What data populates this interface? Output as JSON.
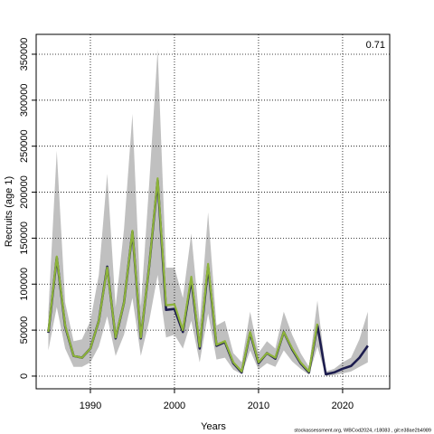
{
  "chart_data": {
    "type": "line",
    "xlabel": "Years",
    "ylabel": "Recruits (age 1)",
    "annotation": "0.71",
    "footer": "stockassessment.org, WBCod2024, r18083 , git:e38ae2b4989",
    "x": [
      1985,
      1986,
      1987,
      1988,
      1989,
      1990,
      1991,
      1992,
      1993,
      1994,
      1995,
      1996,
      1997,
      1998,
      1999,
      2000,
      2001,
      2002,
      2003,
      2004,
      2005,
      2006,
      2007,
      2008,
      2009,
      2010,
      2011,
      2012,
      2013,
      2014,
      2015,
      2016,
      2017,
      2018,
      2019,
      2020,
      2021,
      2022,
      2023
    ],
    "band": {
      "color": "#c0c0c0",
      "upper": [
        70000,
        245000,
        80000,
        38000,
        40000,
        60000,
        110000,
        220000,
        75000,
        160000,
        285000,
        75000,
        210000,
        355000,
        118000,
        118000,
        85000,
        155000,
        58000,
        178000,
        55000,
        60000,
        25000,
        15000,
        70000,
        25000,
        38000,
        30000,
        70000,
        45000,
        25000,
        10000,
        82000,
        5000,
        8000,
        15000,
        20000,
        40000,
        70000
      ],
      "lower": [
        28000,
        75000,
        30000,
        10000,
        10000,
        15000,
        32000,
        65000,
        22000,
        45000,
        85000,
        22000,
        60000,
        110000,
        42000,
        45000,
        30000,
        60000,
        15000,
        68000,
        18000,
        20000,
        7000,
        2000,
        28000,
        7000,
        14000,
        10000,
        28000,
        16000,
        8000,
        1500,
        32000,
        500,
        1000,
        3000,
        5000,
        10000,
        15000
      ]
    },
    "series": [
      {
        "color": "#1c1c4e",
        "values": [
          47000,
          129000,
          54000,
          22000,
          20000,
          30000,
          60000,
          119000,
          41000,
          80000,
          157000,
          41000,
          120000,
          213000,
          72000,
          73000,
          48000,
          105000,
          30000,
          119000,
          33000,
          37000,
          14000,
          4000,
          47000,
          14000,
          25000,
          19000,
          48000,
          29000,
          14000,
          4000,
          55000,
          2000,
          4000,
          8000,
          11000,
          20000,
          33000
        ]
      },
      {
        "color": "#8db33a",
        "values": [
          48000,
          130000,
          55000,
          22000,
          20000,
          30000,
          60000,
          118000,
          42000,
          80000,
          158000,
          42000,
          120000,
          215000,
          77000,
          78000,
          50000,
          108000,
          32000,
          122000,
          34000,
          38000,
          15000,
          5000,
          48000,
          15000,
          25000,
          20000,
          48000,
          30000,
          15000,
          5000,
          57000,
          null,
          null,
          null,
          null,
          null,
          null
        ]
      }
    ],
    "xlim": [
      1983.55,
      2025.6
    ],
    "ylim": [
      -13800,
      371600
    ],
    "xticks": [
      1990,
      2000,
      2010,
      2020
    ],
    "yticks": [
      0,
      50000,
      100000,
      150000,
      200000,
      250000,
      300000,
      350000
    ],
    "grid": true
  }
}
